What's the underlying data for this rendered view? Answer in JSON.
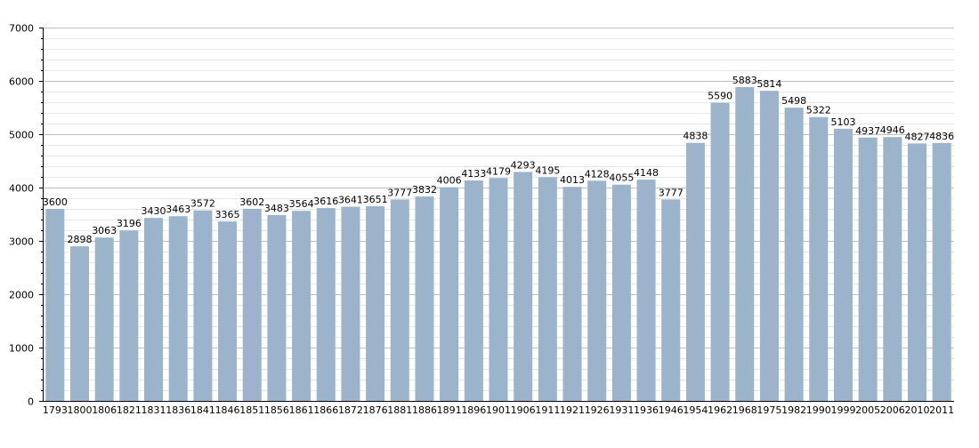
{
  "chart_data": {
    "type": "bar",
    "title": "",
    "xlabel": "",
    "ylabel": "",
    "ylim": [
      0,
      7000
    ],
    "yticks": [
      0,
      1000,
      2000,
      3000,
      4000,
      5000,
      6000,
      7000
    ],
    "y_minor_step": 200,
    "grid": true,
    "legend": "none",
    "colors": {
      "bar": "#9cb3cc",
      "grid_major": "#bfbfbf",
      "grid_minor": "#e6e6e6",
      "axis": "#000000"
    },
    "categories": [
      "1793",
      "1800",
      "1806",
      "1821",
      "1831",
      "1836",
      "1841",
      "1846",
      "1851",
      "1856",
      "1861",
      "1866",
      "1872",
      "1876",
      "1881",
      "1886",
      "1891",
      "1896",
      "1901",
      "1906",
      "1911",
      "1921",
      "1926",
      "1931",
      "1936",
      "1946",
      "1954",
      "1962",
      "1968",
      "1975",
      "1982",
      "1990",
      "1999",
      "2005",
      "2006",
      "2010",
      "2011"
    ],
    "values": [
      3600,
      2898,
      3063,
      3196,
      3430,
      3463,
      3572,
      3365,
      3602,
      3483,
      3564,
      3616,
      3641,
      3651,
      3777,
      3832,
      4006,
      4133,
      4179,
      4293,
      4195,
      4013,
      4128,
      4055,
      4148,
      3777,
      4838,
      5590,
      5883,
      5814,
      5498,
      5322,
      5103,
      4937,
      4946,
      4827,
      4836
    ]
  }
}
